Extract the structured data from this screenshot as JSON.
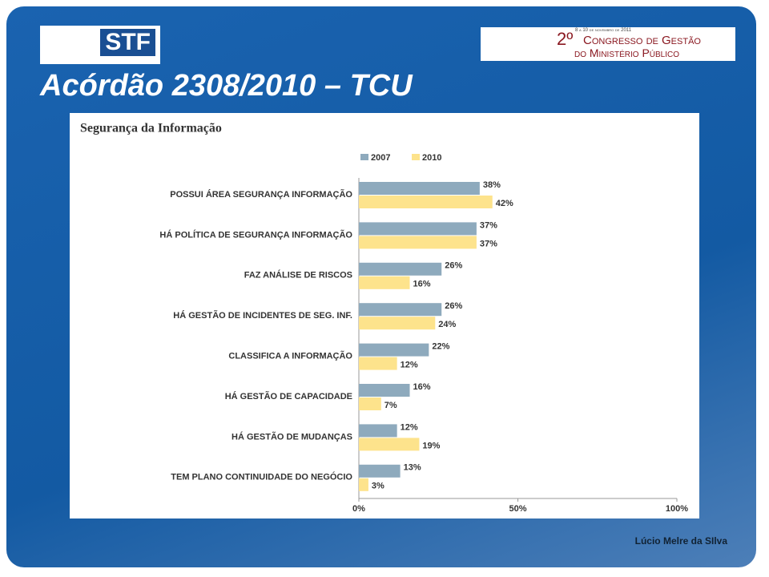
{
  "slide": {
    "logo": "STF",
    "title": "Acórdão 2308/2010 – TCU",
    "event_date": "8 a 10 de novembro de 2011",
    "event_ordinal": "2º",
    "event_line1": "Congresso de Gestão",
    "event_line2": "do Ministério Público",
    "footer": "Lúcio Melre da SIlva"
  },
  "chart_data": {
    "type": "hbar",
    "title": "Segurança da Informação",
    "categories": [
      "POSSUI ÁREA SEGURANÇA INFORMAÇÃO",
      "HÁ POLÍTICA DE SEGURANÇA INFORMAÇÃO",
      "FAZ ANÁLISE DE RISCOS",
      "HÁ GESTÃO DE INCIDENTES DE SEG. INF.",
      "CLASSIFICA A INFORMAÇÃO",
      "HÁ GESTÃO DE CAPACIDADE",
      "HÁ GESTÃO DE MUDANÇAS",
      "TEM PLANO CONTINUIDADE DO NEGÓCIO"
    ],
    "series": [
      {
        "name": "2007",
        "color": "#8eaabd",
        "values": [
          38,
          37,
          26,
          26,
          22,
          16,
          12,
          13
        ],
        "value_labels": [
          "38%",
          "37%",
          "26%",
          "26%",
          "22%",
          "16%",
          "12%",
          "13%"
        ]
      },
      {
        "name": "2010",
        "color": "#fde38c",
        "values": [
          42,
          37,
          16,
          24,
          12,
          7,
          19,
          3
        ],
        "value_labels": [
          "42%",
          "37%",
          "16%",
          "24%",
          "12%",
          "7%",
          "19%",
          "3%"
        ]
      }
    ],
    "xlim": [
      0,
      100
    ],
    "xticks": [
      {
        "value": 0,
        "label": "0%"
      },
      {
        "value": 50,
        "label": "50%"
      },
      {
        "value": 100,
        "label": "100%"
      }
    ]
  }
}
